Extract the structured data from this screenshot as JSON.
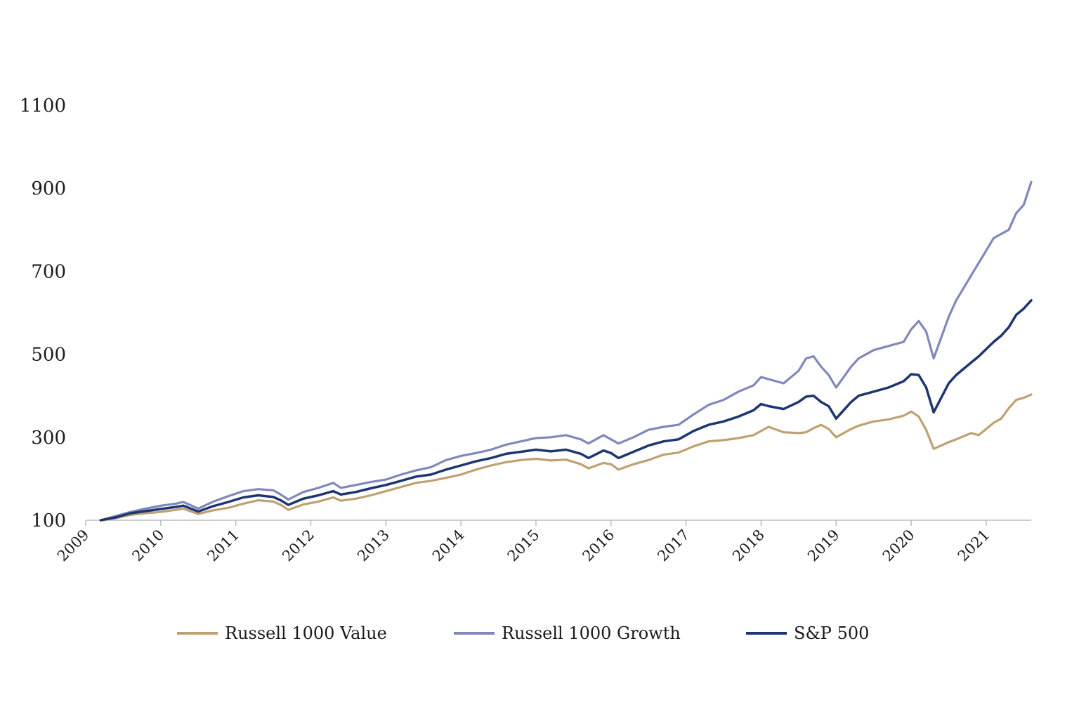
{
  "chart_data": {
    "type": "line",
    "title": "",
    "xlabel": "",
    "ylabel": "",
    "ylim": [
      100,
      1100
    ],
    "yticks": [
      100,
      300,
      500,
      700,
      900,
      1100
    ],
    "xticks": [
      "2009",
      "2010",
      "2011",
      "2012",
      "2013",
      "2014",
      "2015",
      "2016",
      "2017",
      "2018",
      "2019",
      "2020",
      "2021"
    ],
    "xlim": [
      2009,
      2021.6
    ],
    "grid": false,
    "legend_position": "bottom",
    "series": [
      {
        "name": "Russell 1000 Value",
        "color": "#bfa171",
        "x": [
          2009.2,
          2009.4,
          2009.6,
          2009.8,
          2010.0,
          2010.2,
          2010.3,
          2010.5,
          2010.7,
          2010.9,
          2011.1,
          2011.3,
          2011.5,
          2011.6,
          2011.7,
          2011.9,
          2012.1,
          2012.3,
          2012.4,
          2012.6,
          2012.8,
          2013.0,
          2013.2,
          2013.4,
          2013.6,
          2013.8,
          2014.0,
          2014.2,
          2014.4,
          2014.6,
          2014.8,
          2015.0,
          2015.2,
          2015.4,
          2015.6,
          2015.7,
          2015.9,
          2016.0,
          2016.1,
          2016.3,
          2016.5,
          2016.7,
          2016.9,
          2017.1,
          2017.3,
          2017.5,
          2017.7,
          2017.9,
          2018.0,
          2018.1,
          2018.3,
          2018.5,
          2018.6,
          2018.7,
          2018.8,
          2018.9,
          2019.0,
          2019.2,
          2019.3,
          2019.5,
          2019.7,
          2019.9,
          2020.0,
          2020.1,
          2020.2,
          2020.3,
          2020.5,
          2020.6,
          2020.8,
          2020.9,
          2021.1,
          2021.2,
          2021.3,
          2021.4,
          2021.5,
          2021.6
        ],
        "values": [
          100,
          105,
          113,
          117,
          120,
          125,
          128,
          115,
          124,
          130,
          140,
          148,
          145,
          137,
          125,
          138,
          145,
          155,
          147,
          152,
          160,
          170,
          180,
          190,
          195,
          202,
          210,
          222,
          232,
          240,
          245,
          248,
          244,
          246,
          235,
          225,
          238,
          235,
          222,
          235,
          245,
          258,
          263,
          278,
          290,
          293,
          298,
          305,
          315,
          325,
          312,
          310,
          312,
          322,
          330,
          320,
          300,
          320,
          328,
          338,
          343,
          352,
          362,
          350,
          318,
          272,
          288,
          295,
          310,
          305,
          335,
          345,
          370,
          390,
          395,
          403
        ],
        "_note": ""
      },
      {
        "name": "Russell 1000 Growth",
        "color": "#8088bb",
        "x": [
          2009.2,
          2009.4,
          2009.6,
          2009.8,
          2010.0,
          2010.2,
          2010.3,
          2010.5,
          2010.7,
          2010.9,
          2011.1,
          2011.3,
          2011.5,
          2011.6,
          2011.7,
          2011.9,
          2012.1,
          2012.3,
          2012.4,
          2012.6,
          2012.8,
          2013.0,
          2013.2,
          2013.4,
          2013.6,
          2013.8,
          2014.0,
          2014.2,
          2014.4,
          2014.6,
          2014.8,
          2015.0,
          2015.2,
          2015.4,
          2015.6,
          2015.7,
          2015.9,
          2016.0,
          2016.1,
          2016.3,
          2016.5,
          2016.7,
          2016.9,
          2017.1,
          2017.3,
          2017.5,
          2017.7,
          2017.9,
          2018.0,
          2018.1,
          2018.3,
          2018.5,
          2018.6,
          2018.7,
          2018.8,
          2018.9,
          2019.0,
          2019.2,
          2019.3,
          2019.5,
          2019.7,
          2019.9,
          2020.0,
          2020.1,
          2020.2,
          2020.3,
          2020.5,
          2020.6,
          2020.8,
          2020.9,
          2021.1,
          2021.2,
          2021.3,
          2021.4,
          2021.5,
          2021.6
        ],
        "values": [
          100,
          110,
          120,
          128,
          135,
          140,
          144,
          128,
          145,
          158,
          170,
          175,
          172,
          162,
          150,
          168,
          178,
          190,
          178,
          185,
          192,
          198,
          210,
          220,
          228,
          245,
          255,
          262,
          270,
          282,
          290,
          298,
          300,
          305,
          295,
          285,
          305,
          295,
          285,
          300,
          318,
          325,
          330,
          355,
          378,
          390,
          410,
          425,
          445,
          440,
          430,
          460,
          490,
          495,
          470,
          450,
          420,
          470,
          490,
          510,
          520,
          530,
          560,
          580,
          555,
          490,
          590,
          630,
          690,
          720,
          780,
          790,
          800,
          840,
          860,
          915
        ],
        "_note": ""
      },
      {
        "name": "S&P 500",
        "color": "#1c3672",
        "x": [
          2009.2,
          2009.4,
          2009.6,
          2009.8,
          2010.0,
          2010.2,
          2010.3,
          2010.5,
          2010.7,
          2010.9,
          2011.1,
          2011.3,
          2011.5,
          2011.6,
          2011.7,
          2011.9,
          2012.1,
          2012.3,
          2012.4,
          2012.6,
          2012.8,
          2013.0,
          2013.2,
          2013.4,
          2013.6,
          2013.8,
          2014.0,
          2014.2,
          2014.4,
          2014.6,
          2014.8,
          2015.0,
          2015.2,
          2015.4,
          2015.6,
          2015.7,
          2015.9,
          2016.0,
          2016.1,
          2016.3,
          2016.5,
          2016.7,
          2016.9,
          2017.1,
          2017.3,
          2017.5,
          2017.7,
          2017.9,
          2018.0,
          2018.1,
          2018.3,
          2018.5,
          2018.6,
          2018.7,
          2018.8,
          2018.9,
          2019.0,
          2019.2,
          2019.3,
          2019.5,
          2019.7,
          2019.9,
          2020.0,
          2020.1,
          2020.2,
          2020.3,
          2020.5,
          2020.6,
          2020.8,
          2020.9,
          2021.1,
          2021.2,
          2021.3,
          2021.4,
          2021.5,
          2021.6
        ],
        "values": [
          100,
          107,
          117,
          122,
          127,
          132,
          135,
          121,
          134,
          144,
          155,
          160,
          156,
          148,
          137,
          152,
          160,
          170,
          162,
          168,
          177,
          185,
          195,
          205,
          210,
          222,
          232,
          242,
          250,
          260,
          265,
          270,
          266,
          270,
          260,
          250,
          268,
          262,
          250,
          265,
          280,
          290,
          295,
          315,
          330,
          338,
          350,
          365,
          380,
          375,
          368,
          385,
          398,
          400,
          385,
          375,
          345,
          385,
          400,
          410,
          420,
          435,
          452,
          450,
          420,
          360,
          430,
          450,
          480,
          495,
          530,
          545,
          565,
          595,
          610,
          630
        ],
        "_note": ""
      }
    ]
  }
}
